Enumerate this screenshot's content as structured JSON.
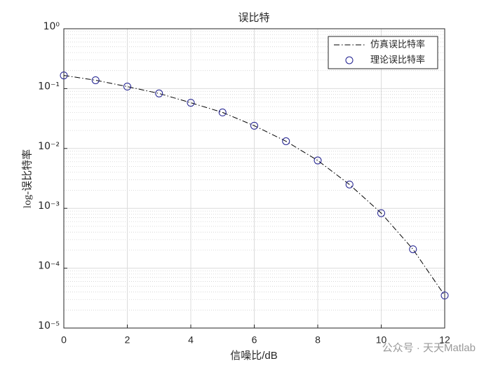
{
  "chart_data": {
    "type": "line",
    "title": "误比特",
    "x_label": "信噪比/dB",
    "y_label": "log-误比特率",
    "x": [
      0,
      1,
      2,
      3,
      4,
      5,
      6,
      7,
      8,
      9,
      10,
      11,
      12
    ],
    "series": [
      {
        "name": "仿真误比特率",
        "color": "#000000",
        "line_style": "dash-dot",
        "marker": "none",
        "values": [
          0.166,
          0.138,
          0.108,
          0.083,
          0.058,
          0.04,
          0.024,
          0.0132,
          0.0063,
          0.0025,
          0.00083,
          0.000207,
          3.5e-05
        ]
      },
      {
        "name": "理论误比特率",
        "color": "#1f1f8f",
        "line_style": "none",
        "marker": "circle",
        "values": [
          0.166,
          0.138,
          0.108,
          0.083,
          0.058,
          0.04,
          0.024,
          0.0132,
          0.0063,
          0.0025,
          0.00083,
          0.000207,
          3.5e-05
        ]
      }
    ],
    "xlim": [
      0,
      12
    ],
    "xticks": [
      0,
      2,
      4,
      6,
      8,
      10,
      12
    ],
    "ylim": [
      1e-05,
      1
    ],
    "log_y": true,
    "yticks": [
      {
        "value": 1e-05,
        "label": "10⁻⁵"
      },
      {
        "value": 0.0001,
        "label": "10⁻⁴"
      },
      {
        "value": 0.001,
        "label": "10⁻³"
      },
      {
        "value": 0.01,
        "label": "10⁻²"
      },
      {
        "value": 0.1,
        "label": "10⁻¹"
      },
      {
        "value": 1,
        "label": "10⁰"
      }
    ],
    "grid": true,
    "minor_grid": true,
    "legend_position": "upper-right",
    "watermark": "公众号 · 天天Matlab"
  }
}
